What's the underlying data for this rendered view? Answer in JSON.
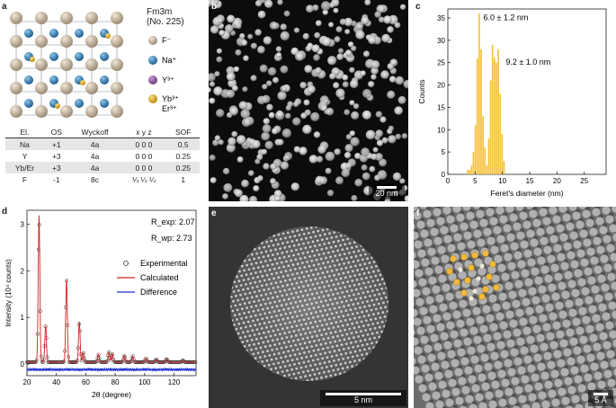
{
  "panel_labels": {
    "a": "a",
    "b": "b",
    "c": "c",
    "d": "d",
    "e": "e",
    "f": "f"
  },
  "structure": {
    "space_group": "Fm3m",
    "space_group_no": "(No. 225)",
    "legend": [
      {
        "label": "F⁻",
        "color": "#c9b8a0"
      },
      {
        "label": "Na⁺",
        "color": "#3b84b8"
      },
      {
        "label": "Y³⁺",
        "color": "#9b64a8"
      },
      {
        "label": "Yb³⁺",
        "color": "#e4b42a",
        "label2": "Er³⁺"
      }
    ]
  },
  "table": {
    "headers": [
      "El.",
      "OS",
      "Wyckoff",
      "x y z",
      "SOF"
    ],
    "rows": [
      [
        "Na",
        "+1",
        "4a",
        "0 0 0",
        "0.5"
      ],
      [
        "Y",
        "+3",
        "4a",
        "0 0 0",
        "0.25"
      ],
      [
        "Yb/Er",
        "+3",
        "4a",
        "0 0 0",
        "0.25"
      ],
      [
        "F",
        "-1",
        "8c",
        "¼ ¼ ¼",
        "1"
      ]
    ]
  },
  "scalebars": {
    "b": "20 nm",
    "e": "5 nm",
    "f": "5 Å"
  },
  "chart_data": [
    {
      "type": "bar",
      "panel": "c",
      "xlabel": "Feret's diameter (nm)",
      "ylabel": "Counts",
      "xlim": [
        0,
        29
      ],
      "ylim": [
        0,
        37
      ],
      "xticks": [
        0,
        5,
        10,
        15,
        20,
        25
      ],
      "yticks": [
        0,
        5,
        10,
        15,
        20,
        25,
        30,
        35
      ],
      "color": "#f5c242",
      "bin_width": 0.35,
      "x": [
        3.5,
        3.85,
        4.2,
        4.55,
        4.9,
        5.25,
        5.6,
        5.95,
        6.3,
        6.65,
        7.0,
        7.35,
        7.7,
        8.05,
        8.4,
        8.75,
        9.1,
        9.45,
        9.8,
        10.15
      ],
      "values": [
        1,
        1,
        2,
        5,
        11,
        26,
        36,
        28,
        13,
        6,
        2,
        8,
        21,
        29,
        26,
        25,
        28,
        18,
        9,
        3
      ],
      "annotations": [
        "6.0 ± 1.2 nm",
        "9.2 ± 1.0 nm"
      ]
    },
    {
      "type": "line",
      "panel": "d",
      "xlabel": "2θ (degree)",
      "ylabel": "Intensity (10⁴ counts)",
      "xlim": [
        20,
        135
      ],
      "ylim": [
        -0.25,
        3.3
      ],
      "xticks": [
        20,
        40,
        60,
        80,
        100,
        120
      ],
      "yticks": [
        0,
        1,
        2,
        3
      ],
      "r_exp": "R_exp: 2.07",
      "r_wp": "R_wp: 2.73",
      "peaks": [
        [
          28.2,
          3.15
        ],
        [
          32.7,
          0.78
        ],
        [
          46.9,
          1.78
        ],
        [
          55.6,
          0.87
        ],
        [
          58.3,
          0.2
        ],
        [
          68.6,
          0.16
        ],
        [
          75.7,
          0.22
        ],
        [
          78.0,
          0.18
        ],
        [
          86.2,
          0.14
        ],
        [
          91.9,
          0.13
        ],
        [
          101.0,
          0.08
        ],
        [
          108.0,
          0.06
        ],
        [
          115.0,
          0.07
        ],
        [
          126.0,
          0.04
        ]
      ],
      "series": [
        {
          "name": "Experimental",
          "color": "#333333",
          "marker": "circle"
        },
        {
          "name": "Calculated",
          "color": "#d22020"
        },
        {
          "name": "Difference",
          "color": "#1f2fd0"
        }
      ]
    }
  ]
}
